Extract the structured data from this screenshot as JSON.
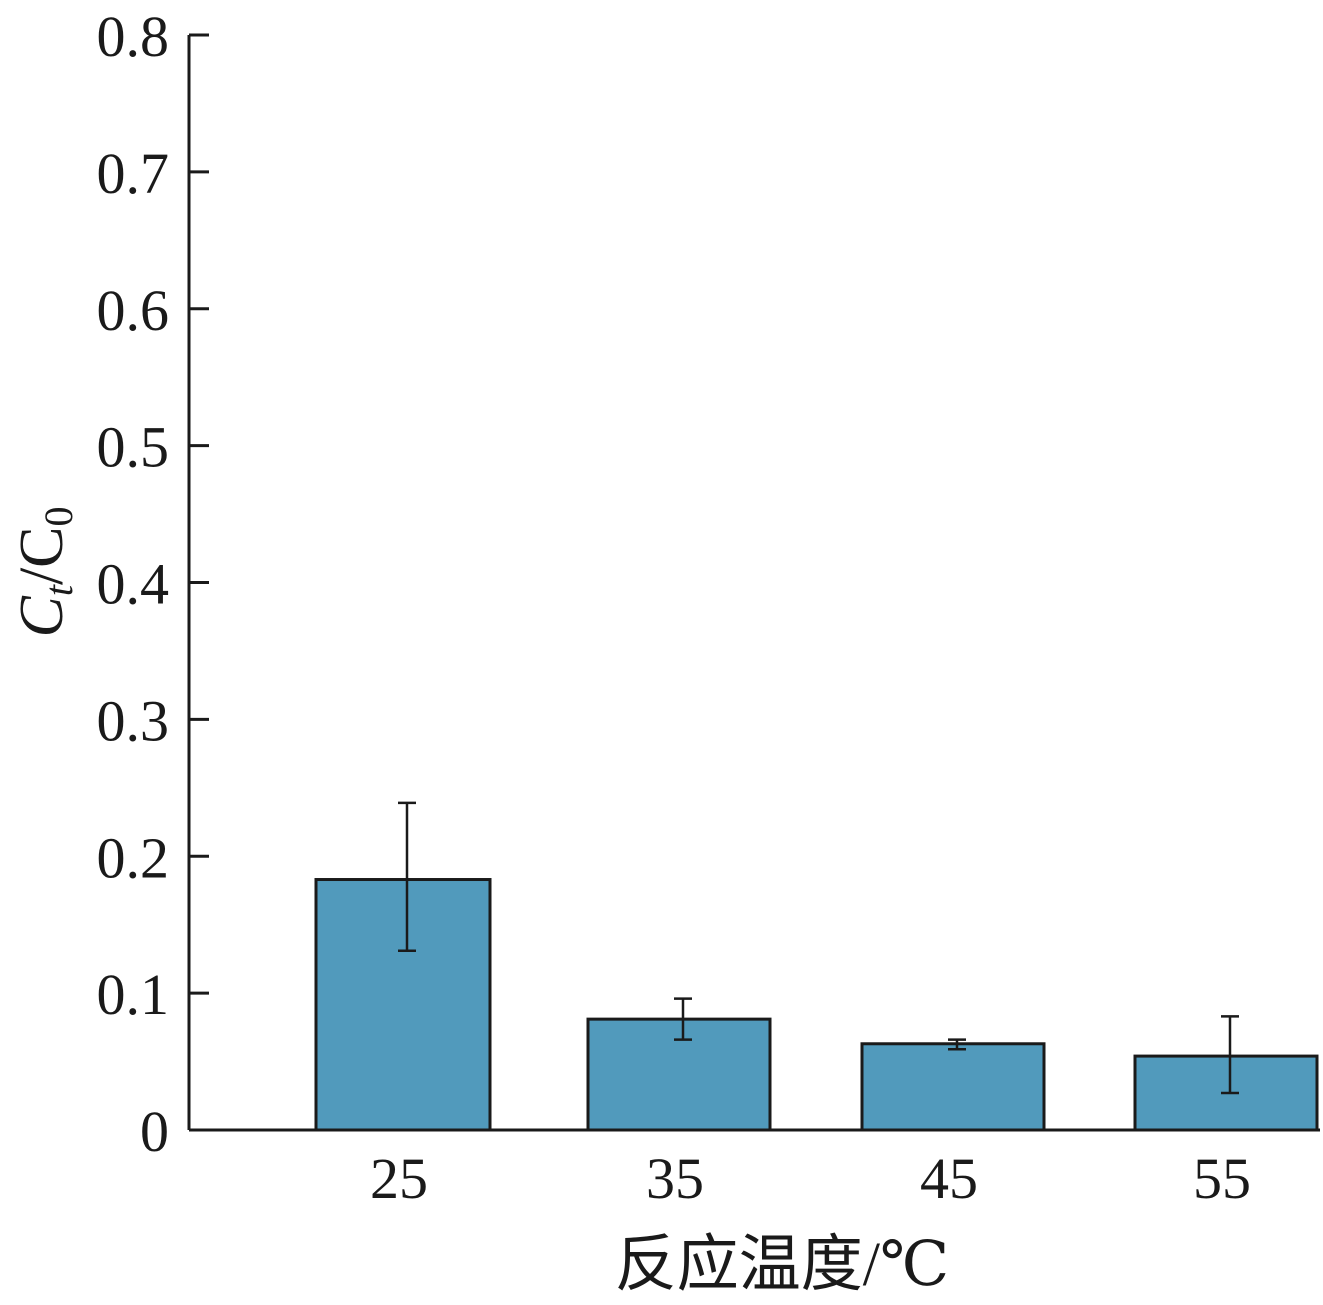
{
  "chart_data": {
    "type": "bar",
    "categories": [
      "25",
      "35",
      "45",
      "55"
    ],
    "values": [
      0.183,
      0.081,
      0.063,
      0.054
    ],
    "error_bars": [
      {
        "low": 0.131,
        "high": 0.239
      },
      {
        "low": 0.066,
        "high": 0.096
      },
      {
        "low": 0.059,
        "high": 0.066
      },
      {
        "low": 0.027,
        "high": 0.083
      }
    ],
    "xlabel": "反应温度/℃",
    "ylabel": {
      "main": "C",
      "sub1": "t",
      "mid": "/C",
      "sub2": "0"
    },
    "ylim": [
      0,
      0.8
    ],
    "yticks": [
      "0",
      "0.1",
      "0.2",
      "0.3",
      "0.4",
      "0.5",
      "0.6",
      "0.7",
      "0.8"
    ],
    "grid": false,
    "bar_color": "#519ABC"
  }
}
